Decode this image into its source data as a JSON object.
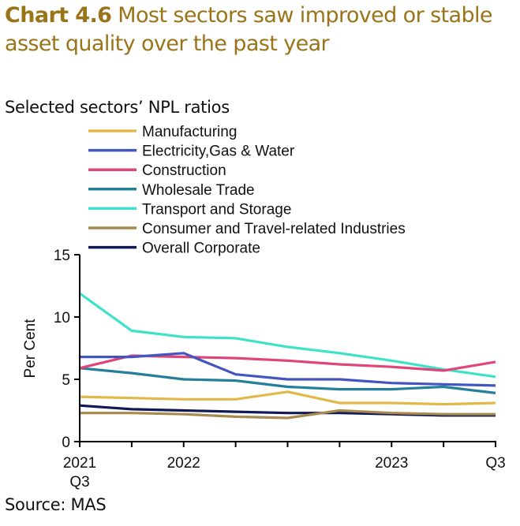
{
  "header": {
    "chart_number": "Chart 4.6",
    "title_line1": "Most sectors saw improved or stable",
    "title_line2": "asset quality over the past year"
  },
  "subtitle": "Selected sectors’ NPL ratios",
  "source": "Source: MAS",
  "chart_data": {
    "type": "line",
    "title": "Most sectors saw improved or stable asset quality over the past year",
    "subtitle": "Selected sectors’ NPL ratios",
    "xlabel": "",
    "ylabel": "Per Cent",
    "ylim": [
      0,
      15
    ],
    "yticks": [
      0,
      5,
      10,
      15
    ],
    "x": [
      "2021 Q3",
      "2021 Q4",
      "2022 Q1",
      "2022 Q2",
      "2022 Q3",
      "2022 Q4",
      "2023 Q1",
      "2023 Q2",
      "2023 Q3"
    ],
    "xtick_labels": [
      {
        "index": 0,
        "line1": "2021",
        "line2": "Q3"
      },
      {
        "index": 2,
        "line1": "2022",
        "line2": ""
      },
      {
        "index": 6,
        "line1": "2023",
        "line2": ""
      },
      {
        "index": 8,
        "line1": "Q3",
        "line2": ""
      }
    ],
    "grid": false,
    "legend_position": "top",
    "series": [
      {
        "name": "Manufacturing",
        "color": "#e2b84a",
        "values": [
          3.6,
          3.5,
          3.4,
          3.4,
          4.0,
          3.1,
          3.1,
          3.0,
          3.1
        ]
      },
      {
        "name": "Electricity,Gas & Water",
        "color": "#4255c0",
        "values": [
          6.8,
          6.8,
          7.1,
          5.4,
          5.0,
          5.0,
          4.7,
          4.6,
          4.5
        ]
      },
      {
        "name": "Construction",
        "color": "#e0457a",
        "values": [
          5.9,
          6.9,
          6.8,
          6.7,
          6.5,
          6.2,
          6.0,
          5.7,
          6.4
        ]
      },
      {
        "name": "Wholesale Trade",
        "color": "#267f9a",
        "values": [
          5.9,
          5.5,
          5.0,
          4.9,
          4.4,
          4.2,
          4.2,
          4.4,
          3.9
        ]
      },
      {
        "name": "Transport and Storage",
        "color": "#3ee2c8",
        "values": [
          11.9,
          8.9,
          8.4,
          8.3,
          7.6,
          7.1,
          6.5,
          5.8,
          5.2
        ]
      },
      {
        "name": "Consumer and Travel-related Industries",
        "color": "#a88a4e",
        "values": [
          2.3,
          2.3,
          2.2,
          2.0,
          1.9,
          2.5,
          2.3,
          2.2,
          2.2
        ]
      },
      {
        "name": "Overall Corporate",
        "color": "#111a55",
        "values": [
          2.9,
          2.6,
          2.5,
          2.4,
          2.3,
          2.3,
          2.2,
          2.1,
          2.1
        ]
      }
    ]
  }
}
